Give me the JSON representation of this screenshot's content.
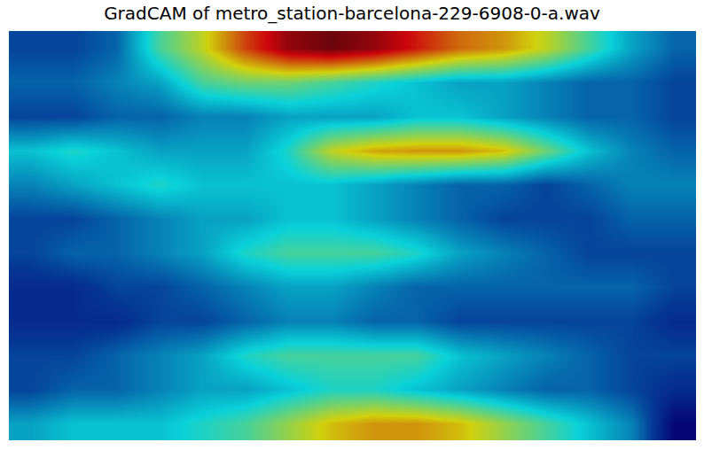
{
  "chart_data": {
    "type": "heatmap",
    "title": "GradCAM of metro_station-barcelona-229-6908-0-a.wav",
    "tick_labels": false,
    "grid": false,
    "cells": [
      [
        0.15,
        0.15,
        0.2,
        0.45,
        0.6,
        0.8,
        0.95,
        1.0,
        0.95,
        0.85,
        0.75,
        0.7,
        0.6,
        0.45,
        0.3,
        0.2
      ],
      [
        0.2,
        0.2,
        0.25,
        0.3,
        0.45,
        0.5,
        0.5,
        0.45,
        0.4,
        0.35,
        0.3,
        0.3,
        0.25,
        0.2,
        0.2,
        0.15
      ],
      [
        0.15,
        0.15,
        0.2,
        0.2,
        0.25,
        0.25,
        0.3,
        0.3,
        0.3,
        0.35,
        0.35,
        0.3,
        0.25,
        0.2,
        0.2,
        0.15
      ],
      [
        0.35,
        0.4,
        0.35,
        0.3,
        0.3,
        0.3,
        0.4,
        0.6,
        0.68,
        0.7,
        0.7,
        0.65,
        0.5,
        0.35,
        0.25,
        0.2
      ],
      [
        0.25,
        0.3,
        0.35,
        0.4,
        0.35,
        0.35,
        0.35,
        0.35,
        0.3,
        0.25,
        0.2,
        0.2,
        0.15,
        0.2,
        0.25,
        0.25
      ],
      [
        0.15,
        0.15,
        0.2,
        0.25,
        0.3,
        0.3,
        0.35,
        0.35,
        0.3,
        0.25,
        0.2,
        0.15,
        0.15,
        0.15,
        0.2,
        0.2
      ],
      [
        0.15,
        0.2,
        0.2,
        0.25,
        0.3,
        0.4,
        0.45,
        0.45,
        0.45,
        0.4,
        0.3,
        0.25,
        0.2,
        0.15,
        0.15,
        0.15
      ],
      [
        0.1,
        0.1,
        0.15,
        0.15,
        0.2,
        0.25,
        0.3,
        0.3,
        0.25,
        0.2,
        0.2,
        0.2,
        0.2,
        0.2,
        0.2,
        0.15
      ],
      [
        0.1,
        0.1,
        0.1,
        0.15,
        0.15,
        0.2,
        0.25,
        0.25,
        0.2,
        0.2,
        0.15,
        0.15,
        0.15,
        0.15,
        0.15,
        0.1
      ],
      [
        0.15,
        0.15,
        0.2,
        0.25,
        0.3,
        0.4,
        0.45,
        0.45,
        0.45,
        0.45,
        0.35,
        0.3,
        0.25,
        0.2,
        0.15,
        0.15
      ],
      [
        0.15,
        0.2,
        0.2,
        0.25,
        0.3,
        0.3,
        0.35,
        0.4,
        0.4,
        0.35,
        0.3,
        0.25,
        0.2,
        0.2,
        0.15,
        0.1
      ],
      [
        0.3,
        0.35,
        0.35,
        0.35,
        0.4,
        0.45,
        0.55,
        0.65,
        0.7,
        0.7,
        0.65,
        0.55,
        0.45,
        0.35,
        0.25,
        0.0
      ]
    ]
  }
}
